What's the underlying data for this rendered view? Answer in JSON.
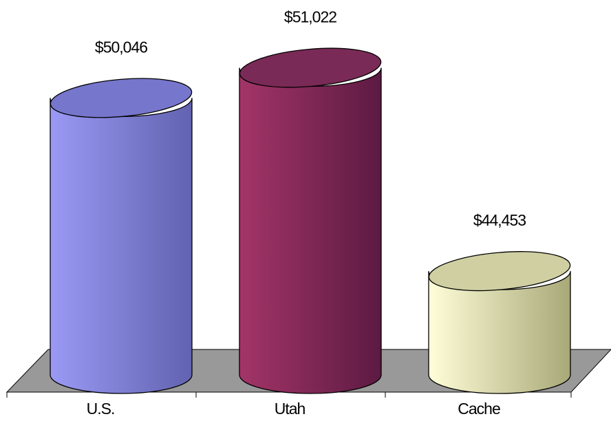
{
  "chart_data": {
    "type": "bar3d",
    "categories": [
      "U.S.",
      "Utah",
      "Cache"
    ],
    "values": [
      50046,
      51022,
      44453
    ],
    "value_labels": [
      "$50,046",
      "$51,022",
      "$44,453"
    ],
    "colors": [
      [
        "#9a9af5",
        "#6262b0",
        "#7676cc"
      ],
      [
        "#a33568",
        "#5c1a42",
        "#7a2a56"
      ],
      [
        "#fffed8",
        "#a8a878",
        "#cfcfa2"
      ]
    ],
    "ylim": [
      41100,
      52000
    ]
  }
}
